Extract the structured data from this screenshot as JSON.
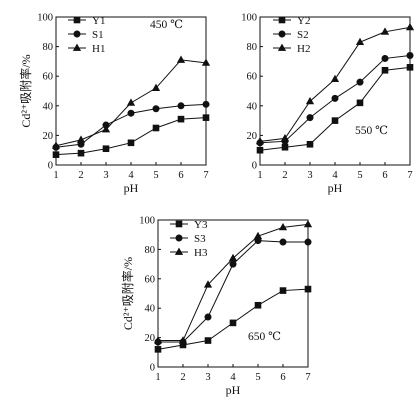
{
  "chart_data": [
    {
      "type": "line",
      "annotation": "450 ℃",
      "x": [
        1,
        2,
        3,
        4,
        5,
        6,
        7
      ],
      "xlabel": "pH",
      "ylabel": "Cd²⁺吸附率/%",
      "xlim": [
        1,
        7
      ],
      "ylim": [
        0,
        100
      ],
      "xticks": [
        "1",
        "2",
        "3",
        "4",
        "5",
        "6",
        "7"
      ],
      "yticks": [
        "0",
        "20",
        "40",
        "60",
        "80",
        "100"
      ],
      "legend_position": "top-left",
      "grid": false,
      "series": [
        {
          "name": "Y1",
          "marker": "square",
          "values": [
            7,
            8,
            11,
            15,
            25,
            31,
            32
          ]
        },
        {
          "name": "S1",
          "marker": "circle",
          "values": [
            12,
            14,
            27,
            35,
            38,
            40,
            41
          ]
        },
        {
          "name": "H1",
          "marker": "triangle",
          "values": [
            13,
            17,
            24,
            42,
            52,
            71,
            69
          ]
        }
      ]
    },
    {
      "type": "line",
      "annotation": "550 ℃",
      "x": [
        1,
        2,
        3,
        4,
        5,
        6,
        7
      ],
      "xlabel": "pH",
      "ylabel": "",
      "xlim": [
        1,
        7
      ],
      "ylim": [
        0,
        100
      ],
      "xticks": [
        "1",
        "2",
        "3",
        "4",
        "5",
        "6",
        "7"
      ],
      "yticks": [
        "0",
        "20",
        "40",
        "60",
        "80",
        "100"
      ],
      "legend_position": "top-left",
      "grid": false,
      "series": [
        {
          "name": "Y2",
          "marker": "square",
          "values": [
            10,
            12,
            14,
            30,
            42,
            64,
            66
          ]
        },
        {
          "name": "S2",
          "marker": "circle",
          "values": [
            15,
            16,
            32,
            45,
            56,
            72,
            74
          ]
        },
        {
          "name": "H2",
          "marker": "triangle",
          "values": [
            16,
            18,
            43,
            58,
            83,
            90,
            93
          ]
        }
      ]
    },
    {
      "type": "line",
      "annotation": "650 ℃",
      "x": [
        1,
        2,
        3,
        4,
        5,
        6,
        7
      ],
      "xlabel": "pH",
      "ylabel": "Cd²⁺吸附率/%",
      "xlim": [
        1,
        7
      ],
      "ylim": [
        0,
        100
      ],
      "xticks": [
        "1",
        "2",
        "3",
        "4",
        "5",
        "6",
        "7"
      ],
      "yticks": [
        "0",
        "20",
        "40",
        "60",
        "80",
        "100"
      ],
      "legend_position": "top-left",
      "grid": false,
      "series": [
        {
          "name": "Y3",
          "marker": "square",
          "values": [
            12,
            15,
            18,
            30,
            42,
            52,
            53
          ]
        },
        {
          "name": "S3",
          "marker": "circle",
          "values": [
            17,
            17,
            34,
            70,
            86,
            85,
            85
          ]
        },
        {
          "name": "H3",
          "marker": "triangle",
          "values": [
            18,
            18,
            56,
            74,
            89,
            95,
            97
          ]
        }
      ]
    }
  ]
}
